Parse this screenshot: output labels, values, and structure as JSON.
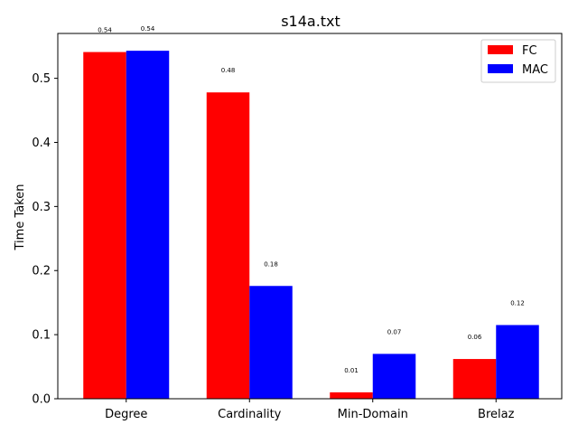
{
  "chart_data": {
    "type": "bar",
    "title": "s14a.txt",
    "xlabel": "",
    "ylabel": "Time Taken",
    "categories": [
      "Degree",
      "Cardinality",
      "Min-Domain",
      "Brelaz"
    ],
    "series": [
      {
        "name": "FC",
        "color": "#ff0000",
        "values": [
          0.541,
          0.478,
          0.01,
          0.062
        ],
        "labels": [
          "0.54",
          "0.48",
          "0.01",
          "0.06"
        ]
      },
      {
        "name": "MAC",
        "color": "#0000ff",
        "values": [
          0.543,
          0.176,
          0.07,
          0.115
        ],
        "labels": [
          "0.54",
          "0.18",
          "0.07",
          "0.12"
        ]
      }
    ],
    "ylim": [
      0,
      0.57
    ],
    "yticks": [
      0.0,
      0.1,
      0.2,
      0.3,
      0.4,
      0.5
    ],
    "ytick_labels": [
      "0.0",
      "0.1",
      "0.2",
      "0.3",
      "0.4",
      "0.5"
    ],
    "grid": false,
    "legend_position": "top-right"
  }
}
